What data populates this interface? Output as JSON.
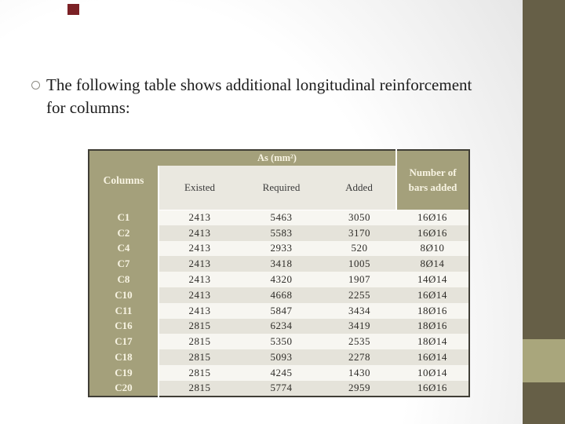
{
  "slide": {
    "body_text_line1": "The following table shows additional longitudinal reinforcement",
    "body_text_line2": "for columns:"
  },
  "accents": {
    "right_bar_color": "#665f47",
    "right_bar_block_color": "#a9a67c",
    "top_square_color": "#7b2125",
    "table_header_olive": "#a4a07b",
    "row_light": "#f7f6f1",
    "row_dark": "#e5e3da"
  },
  "table": {
    "as_header": "As (mm²)",
    "columns_header": "Columns",
    "sub_headers": [
      "Existed",
      "Required",
      "Added"
    ],
    "bars_header": [
      "Number of",
      "bars added"
    ],
    "rows": [
      [
        "C1",
        "2413",
        "5463",
        "3050",
        "16Ø16"
      ],
      [
        "C2",
        "2413",
        "5583",
        "3170",
        "16Ø16"
      ],
      [
        "C4",
        "2413",
        "2933",
        "520",
        "8Ø10"
      ],
      [
        "C7",
        "2413",
        "3418",
        "1005",
        "8Ø14"
      ],
      [
        "C8",
        "2413",
        "4320",
        "1907",
        "14Ø14"
      ],
      [
        "C10",
        "2413",
        "4668",
        "2255",
        "16Ø14"
      ],
      [
        "C11",
        "2413",
        "5847",
        "3434",
        "18Ø16"
      ],
      [
        "C16",
        "2815",
        "6234",
        "3419",
        "18Ø16"
      ],
      [
        "C17",
        "2815",
        "5350",
        "2535",
        "18Ø14"
      ],
      [
        "C18",
        "2815",
        "5093",
        "2278",
        "16Ø14"
      ],
      [
        "C19",
        "2815",
        "4245",
        "1430",
        "10Ø14"
      ],
      [
        "C20",
        "2815",
        "5774",
        "2959",
        "16Ø16"
      ]
    ]
  }
}
